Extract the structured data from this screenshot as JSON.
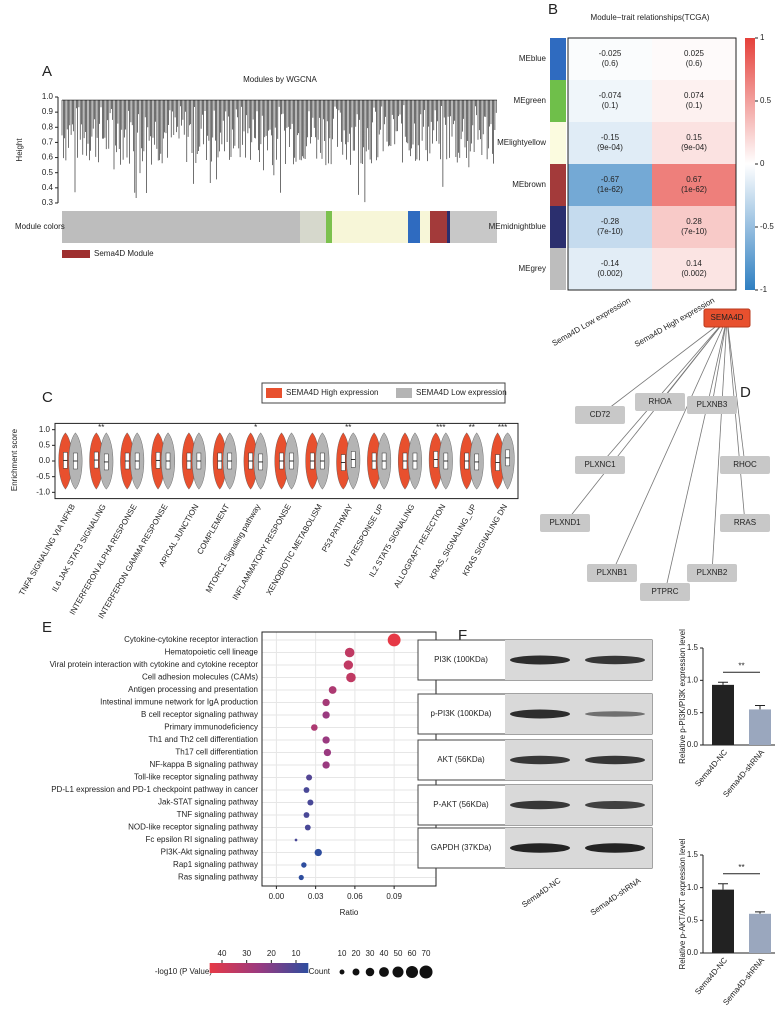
{
  "panel_labels": [
    "A",
    "B",
    "C",
    "D",
    "E",
    "F"
  ],
  "chart_data": [
    {
      "type": "dendrogram",
      "title": "Modules by WGCNA",
      "y_label": "Height",
      "ylim": [
        0.28,
        1.0
      ],
      "yticks": [
        0.3,
        0.4,
        0.5,
        0.6,
        0.7,
        0.8,
        0.9,
        {
          "value": 1,
          "label": "1.0"
        }
      ],
      "row_label": "Module colors",
      "legend": [
        {
          "name": "Sema4D Module",
          "color": "#9e2f2f"
        }
      ]
    },
    {
      "type": "heatmap",
      "title": "Module−trait relationships(TCGA)",
      "rows": [
        "MEblue",
        "MEgreen",
        "MElightyellow",
        "MEbrown",
        "MEmidnightblue",
        "MEgrey"
      ],
      "row_colors": [
        "#2f6bc0",
        "#6fbf4a",
        "#fbfbdf",
        "#a33a3a",
        "#2b2f6e",
        "#bdbdbd"
      ],
      "row_label_colors": [
        "#222222",
        "#222222",
        "#222222",
        "#e8302a",
        "#222222",
        "#222222"
      ],
      "columns": [
        "Sema4D Low expression",
        "Sema4D High expression"
      ],
      "values": [
        [
          -0.025,
          0.025
        ],
        [
          -0.074,
          0.074
        ],
        [
          -0.15,
          0.15
        ],
        [
          -0.67,
          0.67
        ],
        [
          -0.28,
          0.28
        ],
        [
          -0.14,
          0.14
        ]
      ],
      "p_labels": [
        [
          "(0.6)",
          "(0.6)"
        ],
        [
          "(0.1)",
          "(0.1)"
        ],
        [
          "(9e-04)",
          "(9e-04)"
        ],
        [
          "(1e-62)",
          "(1e-62)"
        ],
        [
          "(7e-10)",
          "(7e-10)"
        ],
        [
          "(0.002)",
          "(0.002)"
        ]
      ],
      "zlim": [
        -1,
        1
      ],
      "zticks": [
        -1,
        -0.5,
        0,
        0.5,
        1
      ],
      "low_color": "#2f7fc1",
      "high_color": "#e5403a"
    },
    {
      "type": "violin",
      "y_label": "Enrichment score",
      "categories": [
        "TNFA SIGNALING VIA NFKB",
        "IL6 JAK STAT3 SIGNALING",
        "INTERFERON ALPHA RESPONSE",
        "INTERFERON GAMMA RESPONSE",
        "APICAL JUNCTION",
        "COMPLEMENT",
        "MTORC1 Signaling pathway",
        "INFLAMMATORY RESPONSE",
        "XENOBIOTIC METABOLISM",
        "P53 PATHWAY",
        "UV RESPONSE UP",
        "IL2 STAT5 SIGNALING",
        "ALLOGRAFT REJECTION",
        "KRAS_SIGNALING_UP",
        "KRAS SIGNALING DN"
      ],
      "category_colors": [
        "#222222",
        "#e8302a",
        "#222222",
        "#222222",
        "#222222",
        "#222222",
        "#e8302a",
        "#222222",
        "#222222",
        "#e8302a",
        "#222222",
        "#222222",
        "#222222",
        "#e8302a",
        "#e8302a"
      ],
      "annotations": [
        null,
        "**",
        null,
        null,
        null,
        null,
        "*",
        null,
        null,
        "**",
        null,
        null,
        "***",
        "**",
        "***"
      ],
      "series": [
        {
          "name": "SEMA4D High expression",
          "color": "#e8502e",
          "values": [
            0.02,
            0.03,
            0.0,
            0.02,
            0.0,
            0.0,
            0.0,
            0.0,
            0.0,
            -0.05,
            0.0,
            0.0,
            0.05,
            0.0,
            -0.05
          ]
        },
        {
          "name": "SEMA4D Low expression",
          "color": "#b4b4b4",
          "values": [
            0.0,
            -0.03,
            0.0,
            0.0,
            0.0,
            0.0,
            -0.03,
            0.0,
            0.0,
            0.05,
            0.0,
            0.0,
            0.0,
            -0.03,
            0.1
          ]
        }
      ],
      "ylim": [
        -1.2,
        1.2
      ],
      "yticks": [
        {
          "value": -1,
          "label": "-1.0"
        },
        -0.5,
        {
          "value": 0,
          "label": "0.0"
        },
        0.5,
        {
          "value": 1,
          "label": "1.0"
        }
      ]
    },
    {
      "type": "dotplot",
      "x_label": "Ratio",
      "categories": [
        "Cytokine-cytokine receptor interaction",
        "Hematopoietic cell lineage",
        "Viral protein interaction with cytokine and cytokine receptor",
        "Cell adhesion molecules (CAMs)",
        "Antigen processing and presentation",
        "Intestinal immune network for IgA production",
        "B cell receptor signaling pathway",
        "Primary immunodeficiency",
        "Th1 and Th2 cell differentiation",
        "Th17 cell differentiation",
        "NF-kappa B signaling pathway",
        "Toll-like receptor signaling pathway",
        "PD-L1 expression and PD-1 checkpoint pathway in cancer",
        "Jak-STAT signaling pathway",
        "TNF signaling pathway",
        "NOD-like receptor signaling pathway",
        "Fc epsilon RI signaling pathway",
        "PI3K-Akt signaling pathway",
        "Rap1 signaling pathway",
        "Ras signaling pathway"
      ],
      "category_colors": [
        "#222222",
        "#222222",
        "#222222",
        "#222222",
        "#222222",
        "#222222",
        "#222222",
        "#222222",
        "#222222",
        "#222222",
        "#222222",
        "#222222",
        "#222222",
        "#222222",
        "#222222",
        "#222222",
        "#222222",
        "#e8302a",
        "#222222",
        "#222222"
      ],
      "values": [
        0.09,
        0.056,
        0.055,
        0.057,
        0.043,
        0.038,
        0.038,
        0.029,
        0.038,
        0.039,
        0.038,
        0.025,
        0.023,
        0.026,
        0.023,
        0.024,
        0.015,
        0.032,
        0.021,
        0.019
      ],
      "counts": [
        68,
        38,
        36,
        38,
        25,
        22,
        22,
        18,
        22,
        22,
        22,
        15,
        14,
        15,
        14,
        14,
        3,
        22,
        12,
        11
      ],
      "log_p": [
        45,
        35,
        35,
        35,
        30,
        28,
        25,
        30,
        25,
        25,
        25,
        12,
        10,
        10,
        10,
        10,
        10,
        5,
        5,
        5
      ],
      "xlim": [
        -0.011,
        0.122
      ],
      "xticks": [
        {
          "value": 0,
          "label": "0.00"
        },
        0.03,
        0.06,
        0.09
      ],
      "color_title": "-log10 (P Value)",
      "color_lim": [
        5,
        45
      ],
      "color_ticks": [
        40,
        30,
        20,
        10
      ],
      "color_scale": [
        "#2e4d9e",
        "#9a3a80",
        "#e63946"
      ],
      "size_title": "Count",
      "size_ticks": [
        10,
        20,
        30,
        40,
        50,
        60,
        70
      ]
    },
    {
      "type": "bar",
      "y_label": "Relative p-PI3K/PI3K expression level",
      "categories": [
        "Sema4D-NC",
        "Sema4D-shRNA"
      ],
      "values": [
        0.93,
        0.55
      ],
      "errors": [
        0.04,
        0.06
      ],
      "colors": [
        "#222222",
        "#9aa7be"
      ],
      "annotation": "**",
      "ylim": [
        0,
        1.5
      ],
      "yticks": [
        {
          "value": 0,
          "label": "0.0"
        },
        0.5,
        {
          "value": 1,
          "label": "1.0"
        },
        1.5
      ]
    },
    {
      "type": "bar",
      "y_label": "Relative p-AKT/AKT expression level",
      "categories": [
        "Sema4D-NC",
        "Sema4D-shRNA"
      ],
      "values": [
        0.97,
        0.6
      ],
      "errors": [
        0.09,
        0.03
      ],
      "colors": [
        "#222222",
        "#9aa7be"
      ],
      "annotation": "**",
      "ylim": [
        0,
        1.5
      ],
      "yticks": [
        {
          "value": 0,
          "label": "0.0"
        },
        0.5,
        {
          "value": 1,
          "label": "1.0"
        },
        1.5
      ]
    }
  ],
  "network": {
    "nodes": [
      "SEMA4D",
      "CD72",
      "RHOA",
      "PLXNB3",
      "PLXNC1",
      "RHOC",
      "PLXND1",
      "RRAS",
      "PLXNB1",
      "PTPRC",
      "PLXNB2"
    ]
  },
  "western_blot": {
    "bands": [
      "PI3K (100KDa)",
      "p-PI3K (100KDa)",
      "AKT (56KDa)",
      "P-AKT (56KDa)",
      "GAPDH (37KDa)"
    ],
    "lanes": [
      "Sema4D-NC",
      "Sema4D-shRNA"
    ]
  }
}
